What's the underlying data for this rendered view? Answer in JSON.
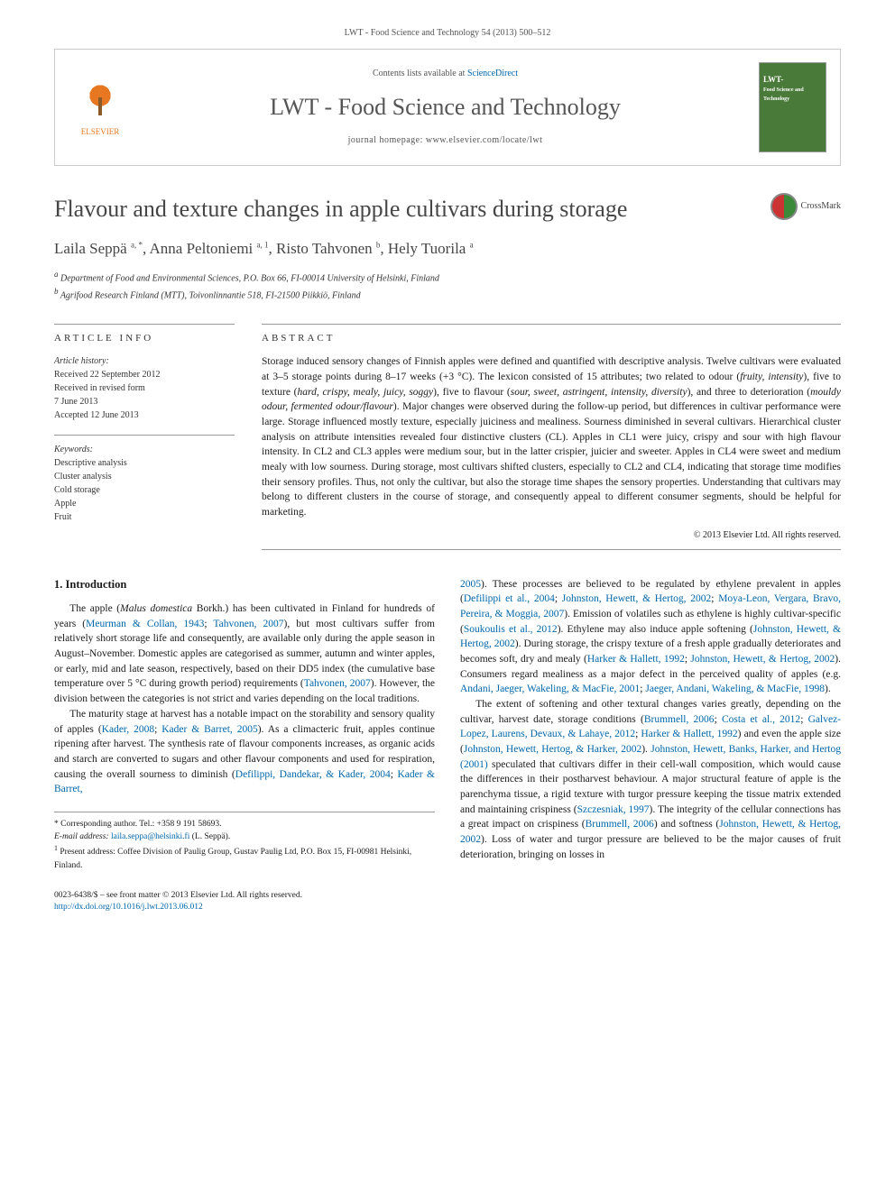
{
  "citation": "LWT - Food Science and Technology 54 (2013) 500–512",
  "header": {
    "publisher_name": "ELSEVIER",
    "contents_prefix": "Contents lists available at ",
    "contents_link": "ScienceDirect",
    "journal_name": "LWT - Food Science and Technology",
    "homepage_prefix": "journal homepage: ",
    "homepage_url": "www.elsevier.com/locate/lwt",
    "cover_title": "LWT-",
    "cover_subtitle": "Food Science and Technology"
  },
  "article": {
    "title": "Flavour and texture changes in apple cultivars during storage",
    "crossmark_label": "CrossMark",
    "authors_html": "Laila Seppä <sup>a, *</sup>, Anna Peltoniemi <sup>a, 1</sup>, Risto Tahvonen <sup>b</sup>, Hely Tuorila <sup>a</sup>",
    "affiliations": [
      "a Department of Food and Environmental Sciences, P.O. Box 66, FI-00014 University of Helsinki, Finland",
      "b Agrifood Research Finland (MTT), Toivonlinnantie 518, FI-21500 Piikkiö, Finland"
    ]
  },
  "info": {
    "heading_info": "ARTICLE INFO",
    "history_label": "Article history:",
    "history": [
      "Received 22 September 2012",
      "Received in revised form",
      "7 June 2013",
      "Accepted 12 June 2013"
    ],
    "keywords_label": "Keywords:",
    "keywords": [
      "Descriptive analysis",
      "Cluster analysis",
      "Cold storage",
      "Apple",
      "Fruit"
    ]
  },
  "abstract": {
    "heading": "ABSTRACT",
    "text": "Storage induced sensory changes of Finnish apples were defined and quantified with descriptive analysis. Twelve cultivars were evaluated at 3–5 storage points during 8–17 weeks (+3 °C). The lexicon consisted of 15 attributes; two related to odour (<em>fruity, intensity</em>), five to texture (<em>hard, crispy, mealy, juicy, soggy</em>), five to flavour (<em>sour, sweet, astringent, intensity, diversity</em>), and three to deterioration (<em>mouldy odour, fermented odour/flavour</em>). Major changes were observed during the follow-up period, but differences in cultivar performance were large. Storage influenced mostly texture, especially juiciness and mealiness. Sourness diminished in several cultivars. Hierarchical cluster analysis on attribute intensities revealed four distinctive clusters (CL). Apples in CL1 were juicy, crispy and sour with high flavour intensity. In CL2 and CL3 apples were medium sour, but in the latter crispier, juicier and sweeter. Apples in CL4 were sweet and medium mealy with low sourness. During storage, most cultivars shifted clusters, especially to CL2 and CL4, indicating that storage time modifies their sensory profiles. Thus, not only the cultivar, but also the storage time shapes the sensory properties. Understanding that cultivars may belong to different clusters in the course of storage, and consequently appeal to different consumer segments, should be helpful for marketing.",
    "copyright": "© 2013 Elsevier Ltd. All rights reserved."
  },
  "body": {
    "section_number": "1.",
    "section_title": "Introduction",
    "left_para_1": "The apple (<em>Malus domestica</em> Borkh.) has been cultivated in Finland for hundreds of years (<a class='cite'>Meurman & Collan, 1943</a>; <a class='cite'>Tahvonen, 2007</a>), but most cultivars suffer from relatively short storage life and consequently, are available only during the apple season in August–November. Domestic apples are categorised as summer, autumn and winter apples, or early, mid and late season, respectively, based on their DD5 index (the cumulative base temperature over 5 °C during growth period) requirements (<a class='cite'>Tahvonen, 2007</a>). However, the division between the categories is not strict and varies depending on the local traditions.",
    "left_para_2": "The maturity stage at harvest has a notable impact on the storability and sensory quality of apples (<a class='cite'>Kader, 2008</a>; <a class='cite'>Kader & Barret, 2005</a>). As a climacteric fruit, apples continue ripening after harvest. The synthesis rate of flavour components increases, as organic acids and starch are converted to sugars and other flavour components and used for respiration, causing the overall sourness to diminish (<a class='cite'>Defilippi, Dandekar, & Kader, 2004</a>; <a class='cite'>Kader & Barret,</a>",
    "right_para_1": "<a class='cite'>2005</a>). These processes are believed to be regulated by ethylene prevalent in apples (<a class='cite'>Defilippi et al., 2004</a>; <a class='cite'>Johnston, Hewett, & Hertog, 2002</a>; <a class='cite'>Moya-Leon, Vergara, Bravo, Pereira, & Moggia, 2007</a>). Emission of volatiles such as ethylene is highly cultivar-specific (<a class='cite'>Soukoulis et al., 2012</a>). Ethylene may also induce apple softening (<a class='cite'>Johnston, Hewett, & Hertog, 2002</a>). During storage, the crispy texture of a fresh apple gradually deteriorates and becomes soft, dry and mealy (<a class='cite'>Harker & Hallett, 1992</a>; <a class='cite'>Johnston, Hewett, & Hertog, 2002</a>). Consumers regard mealiness as a major defect in the perceived quality of apples (e.g. <a class='cite'>Andani, Jaeger, Wakeling, & MacFie, 2001</a>; <a class='cite'>Jaeger, Andani, Wakeling, & MacFie, 1998</a>).",
    "right_para_2": "The extent of softening and other textural changes varies greatly, depending on the cultivar, harvest date, storage conditions (<a class='cite'>Brummell, 2006</a>; <a class='cite'>Costa et al., 2012</a>; <a class='cite'>Galvez-Lopez, Laurens, Devaux, & Lahaye, 2012</a>; <a class='cite'>Harker & Hallett, 1992</a>) and even the apple size (<a class='cite'>Johnston, Hewett, Hertog, & Harker, 2002</a>). <a class='cite'>Johnston, Hewett, Banks, Harker, and Hertog (2001)</a> speculated that cultivars differ in their cell-wall composition, which would cause the differences in their postharvest behaviour. A major structural feature of apple is the parenchyma tissue, a rigid texture with turgor pressure keeping the tissue matrix extended and maintaining crispiness (<a class='cite'>Szczesniak, 1997</a>). The integrity of the cellular connections has a great impact on crispiness (<a class='cite'>Brummell, 2006</a>) and softness (<a class='cite'>Johnston, Hewett, & Hertog, 2002</a>). Loss of water and turgor pressure are believed to be the major causes of fruit deterioration, bringing on losses in"
  },
  "footnotes": {
    "corresponding": "* Corresponding author. Tel.: +358 9 191 58693.",
    "email_label": "E-mail address:",
    "email": "laila.seppa@helsinki.fi",
    "email_suffix": "(L. Seppä).",
    "present_address": "1 Present address: Coffee Division of Paulig Group, Gustav Paulig Ltd, P.O. Box 15, FI-00981 Helsinki, Finland."
  },
  "footer": {
    "left_line1": "0023-6438/$ – see front matter © 2013 Elsevier Ltd. All rights reserved.",
    "doi": "http://dx.doi.org/10.1016/j.lwt.2013.06.012"
  },
  "colors": {
    "link": "#0066aa",
    "elsevier_orange": "#e87722",
    "cover_green": "#4a7a3a",
    "text_gray": "#464646",
    "border_gray": "#cccccc"
  }
}
